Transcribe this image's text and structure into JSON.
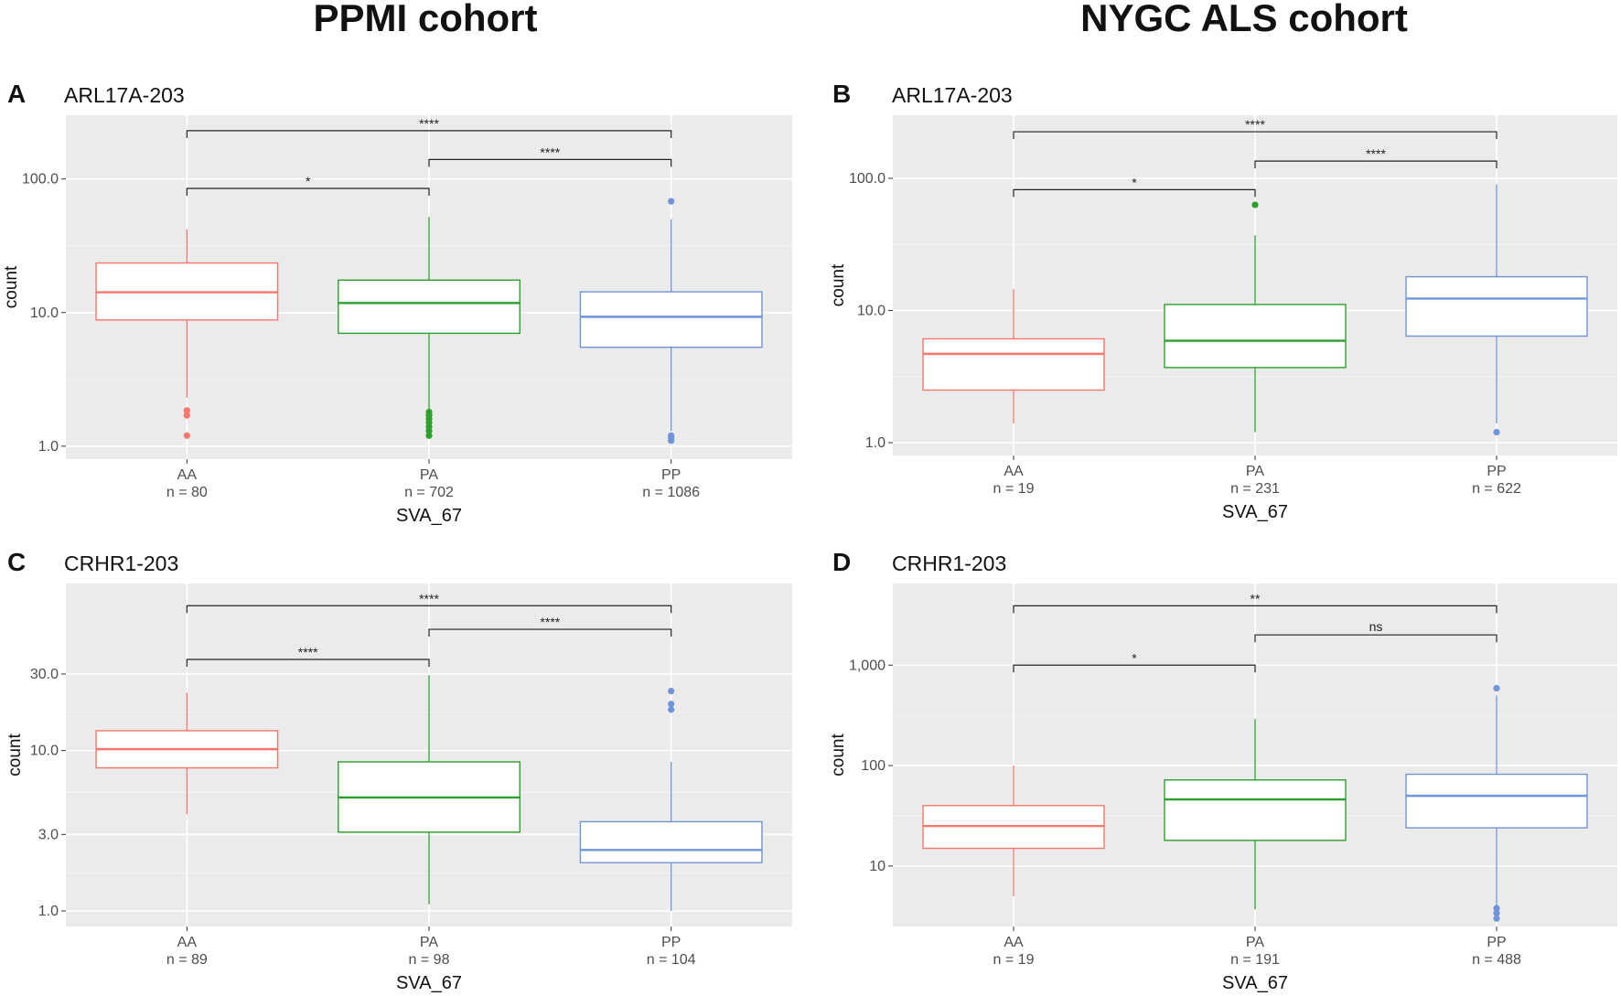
{
  "figure": {
    "left_cohort_title": "PPMI cohort",
    "right_cohort_title": "NYGC ALS cohort"
  },
  "colors": {
    "AA": "#f8766d",
    "PA": "#2ca02c",
    "PP": "#6f95d8",
    "panel_bg": "#ebebeb",
    "grid": "#ffffff",
    "bracket": "#222222"
  },
  "chart_data": [
    {
      "panel": "A",
      "type": "boxplot",
      "title": "ARL17A-203",
      "xlabel": "SVA_67",
      "ylabel": "count",
      "yscale": "log10",
      "ylim": [
        0.8,
        300
      ],
      "y_ticks": [
        1,
        10,
        100
      ],
      "y_tick_labels": [
        "1.0",
        "10.0",
        "100.0"
      ],
      "groups": [
        {
          "name": "AA",
          "n_label": "n = 80",
          "min": 2.3,
          "q1": 8.8,
          "median": 14.2,
          "q3": 23.5,
          "max": 42,
          "outliers": [
            1.2,
            1.7,
            1.85
          ]
        },
        {
          "name": "PA",
          "n_label": "n = 702",
          "min": 1.9,
          "q1": 7.0,
          "median": 11.8,
          "q3": 17.5,
          "max": 52,
          "outliers": [
            1.2,
            1.3,
            1.4,
            1.5,
            1.6,
            1.7,
            1.8
          ]
        },
        {
          "name": "PP",
          "n_label": "n = 1086",
          "min": 1.3,
          "q1": 5.5,
          "median": 9.3,
          "q3": 14.3,
          "max": 50,
          "outliers": [
            1.1,
            1.15,
            1.2,
            68
          ]
        }
      ],
      "comparisons": [
        {
          "from": "AA",
          "to": "PA",
          "label": "*",
          "y": 85
        },
        {
          "from": "PA",
          "to": "PP",
          "label": "****",
          "y": 140
        },
        {
          "from": "AA",
          "to": "PP",
          "label": "****",
          "y": 230
        }
      ]
    },
    {
      "panel": "B",
      "type": "boxplot",
      "title": "ARL17A-203",
      "xlabel": "SVA_67",
      "ylabel": "count",
      "yscale": "log10",
      "ylim": [
        0.8,
        300
      ],
      "y_ticks": [
        1,
        10,
        100
      ],
      "y_tick_labels": [
        "1.0",
        "10.0",
        "100.0"
      ],
      "groups": [
        {
          "name": "AA",
          "n_label": "n = 19",
          "min": 1.4,
          "q1": 2.5,
          "median": 4.7,
          "q3": 6.1,
          "max": 14.5,
          "outliers": []
        },
        {
          "name": "PA",
          "n_label": "n = 231",
          "min": 1.2,
          "q1": 3.7,
          "median": 5.9,
          "q3": 11.1,
          "max": 37,
          "outliers": [
            63
          ]
        },
        {
          "name": "PP",
          "n_label": "n = 622",
          "min": 1.4,
          "q1": 6.4,
          "median": 12.3,
          "q3": 18.0,
          "max": 90,
          "outliers": [
            1.2
          ]
        }
      ],
      "comparisons": [
        {
          "from": "AA",
          "to": "PA",
          "label": "*",
          "y": 82
        },
        {
          "from": "PA",
          "to": "PP",
          "label": "****",
          "y": 135
        },
        {
          "from": "AA",
          "to": "PP",
          "label": "****",
          "y": 225
        }
      ]
    },
    {
      "panel": "C",
      "type": "boxplot",
      "title": "CRHR1-203",
      "xlabel": "SVA_67",
      "ylabel": "count",
      "yscale": "log10",
      "ylim": [
        0.8,
        110
      ],
      "y_ticks": [
        1,
        3,
        10,
        30
      ],
      "y_tick_labels": [
        "1.0",
        "3.0",
        "10.0",
        "30.0"
      ],
      "groups": [
        {
          "name": "AA",
          "n_label": "n = 89",
          "min": 4.0,
          "q1": 7.8,
          "median": 10.2,
          "q3": 13.3,
          "max": 23,
          "outliers": []
        },
        {
          "name": "PA",
          "n_label": "n = 98",
          "min": 1.1,
          "q1": 3.1,
          "median": 5.1,
          "q3": 8.5,
          "max": 29.5,
          "outliers": []
        },
        {
          "name": "PP",
          "n_label": "n = 104",
          "min": 1.0,
          "q1": 2.0,
          "median": 2.4,
          "q3": 3.6,
          "max": 8.5,
          "outliers": [
            18,
            19.5,
            23.5
          ]
        }
      ],
      "comparisons": [
        {
          "from": "AA",
          "to": "PA",
          "label": "****",
          "y": 37
        },
        {
          "from": "PA",
          "to": "PP",
          "label": "****",
          "y": 57
        },
        {
          "from": "AA",
          "to": "PP",
          "label": "****",
          "y": 80
        }
      ]
    },
    {
      "panel": "D",
      "type": "boxplot",
      "title": "CRHR1-203",
      "xlabel": "SVA_67",
      "ylabel": "count",
      "yscale": "log10",
      "ylim": [
        2.5,
        6500
      ],
      "y_ticks": [
        10,
        100,
        1000
      ],
      "y_tick_labels": [
        "10",
        "100",
        "1,000"
      ],
      "groups": [
        {
          "name": "AA",
          "n_label": "n = 19",
          "min": 5.0,
          "q1": 15,
          "median": 25,
          "q3": 40,
          "max": 100,
          "outliers": []
        },
        {
          "name": "PA",
          "n_label": "n = 191",
          "min": 3.7,
          "q1": 18,
          "median": 46,
          "q3": 72,
          "max": 290,
          "outliers": []
        },
        {
          "name": "PP",
          "n_label": "n = 488",
          "min": 4.0,
          "q1": 24,
          "median": 50,
          "q3": 82,
          "max": 500,
          "outliers": [
            3.0,
            3.4,
            3.8,
            590
          ]
        }
      ],
      "comparisons": [
        {
          "from": "AA",
          "to": "PA",
          "label": "*",
          "y": 1000
        },
        {
          "from": "PA",
          "to": "PP",
          "label": "ns",
          "y": 2000
        },
        {
          "from": "AA",
          "to": "PP",
          "label": "**",
          "y": 3900
        }
      ]
    }
  ]
}
